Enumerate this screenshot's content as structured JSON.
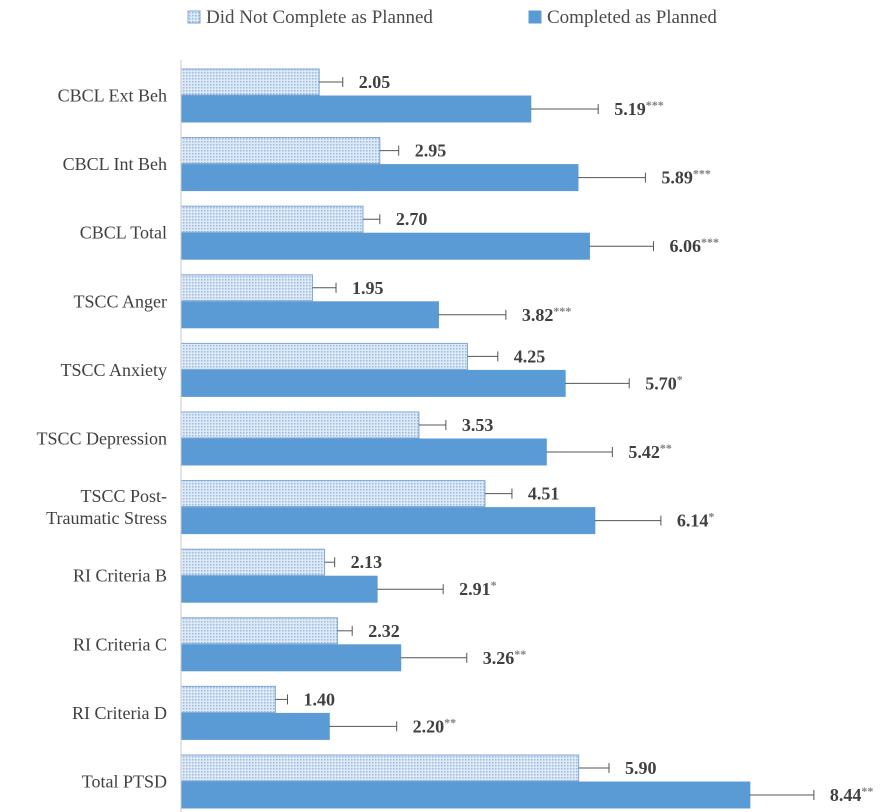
{
  "chart_data": {
    "type": "bar",
    "orientation": "horizontal",
    "categories": [
      "CBCL Ext Beh",
      "CBCL Int Beh",
      "CBCL Total",
      "TSCC Anger",
      "TSCC Anxiety",
      "TSCC Depression",
      [
        "TSCC Post-",
        "Traumatic Stress"
      ],
      "RI Criteria B",
      "RI Criteria C",
      "RI Criteria D",
      "Total PTSD"
    ],
    "series": [
      {
        "name": "Did Not Complete as Planned",
        "color": "#c5d9ef",
        "pattern": "dotted",
        "values": [
          2.05,
          2.95,
          2.7,
          1.95,
          4.25,
          3.53,
          4.51,
          2.13,
          2.32,
          1.4,
          5.9
        ],
        "labels": [
          "2.05",
          "2.95",
          "2.70",
          "1.95",
          "4.25",
          "3.53",
          "4.51",
          "2.13",
          "2.32",
          "1.40",
          "5.90"
        ],
        "error": [
          0.35,
          0.28,
          0.25,
          0.35,
          0.45,
          0.4,
          0.4,
          0.15,
          0.22,
          0.18,
          0.45
        ],
        "significance": [
          "",
          "",
          "",
          "",
          "",
          "",
          "",
          "",
          "",
          "",
          ""
        ]
      },
      {
        "name": "Completed as Planned",
        "color": "#5b9bd5",
        "pattern": "solid",
        "values": [
          5.19,
          5.89,
          6.06,
          3.82,
          5.7,
          5.42,
          6.14,
          2.91,
          3.26,
          2.2,
          8.44
        ],
        "labels": [
          "5.19",
          "5.89",
          "6.06",
          "3.82",
          "5.70",
          "5.42",
          "6.14",
          "2.91",
          "3.26",
          "2.20",
          "8.44"
        ],
        "error": [
          1.0,
          1.0,
          0.95,
          1.0,
          0.95,
          0.98,
          0.98,
          0.98,
          0.98,
          1.0,
          0.95
        ],
        "significance": [
          "***",
          "***",
          "***",
          "***",
          "*",
          "**",
          "*",
          "*",
          "**",
          "**",
          "**"
        ]
      }
    ],
    "xlim": [
      0,
      9.5
    ],
    "grid": false,
    "legend_position": "top"
  }
}
